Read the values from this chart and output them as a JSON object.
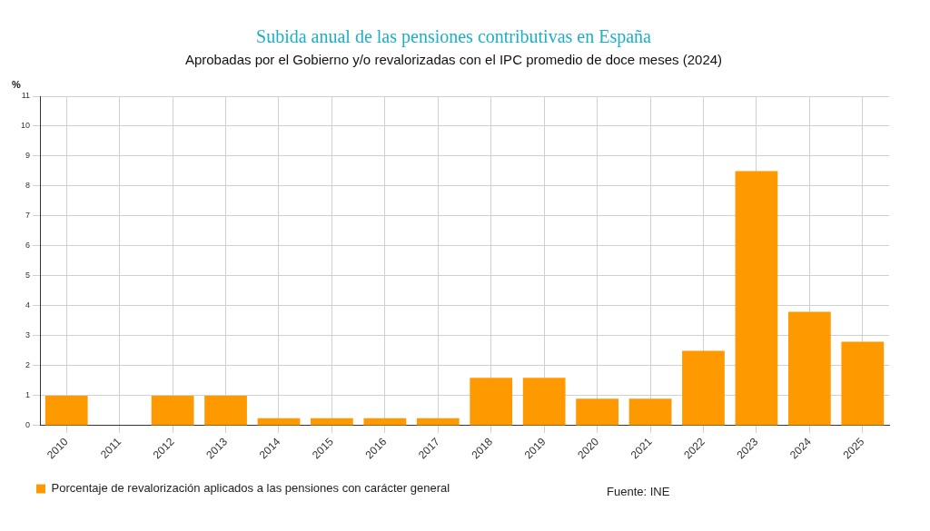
{
  "chart_data": {
    "type": "bar",
    "title": "Subida anual de las pensiones contributivas en España",
    "subtitle": "Aprobadas por el Gobierno y/o revalorizadas con el IPC promedio de doce meses (2024)",
    "ylabel": "%",
    "categories": [
      "2010",
      "2011",
      "2012",
      "2013",
      "2014",
      "2015",
      "2016",
      "2017",
      "2018",
      "2019",
      "2020",
      "2021",
      "2022",
      "2023",
      "2024",
      "2025"
    ],
    "series": [
      {
        "name": "Porcentaje de revalorización aplicados a las pensiones con carácter general",
        "color": "#ff9900",
        "values": [
          1,
          0,
          1,
          1,
          0.25,
          0.25,
          0.25,
          0.25,
          1.6,
          1.6,
          0.9,
          0.9,
          2.5,
          8.5,
          3.8,
          2.8
        ]
      }
    ],
    "ylim": [
      0,
      11
    ],
    "yticks": [
      0,
      1,
      2,
      3,
      4,
      5,
      6,
      7,
      8,
      9,
      10,
      11
    ],
    "grid": true,
    "legend": "bottom",
    "annotations": [
      "Fuente: INE"
    ]
  }
}
